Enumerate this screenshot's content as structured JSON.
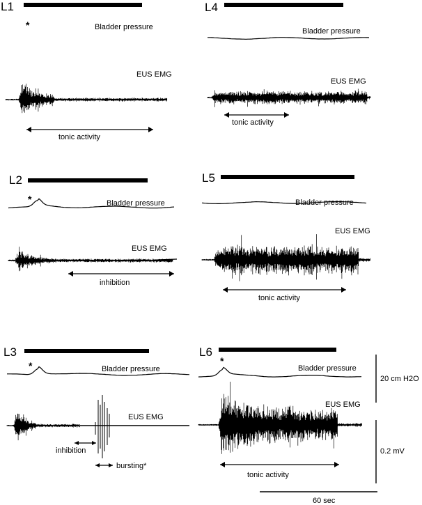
{
  "panels": [
    {
      "id": "L1",
      "label": "L1",
      "pressure_label": "Bladder pressure",
      "emg_label": "EUS EMG",
      "peak_marker": "*",
      "annotations": [
        {
          "text": "tonic activity",
          "kind": "arrow"
        }
      ]
    },
    {
      "id": "L4",
      "label": "L4",
      "pressure_label": "Bladder pressure",
      "emg_label": "EUS EMG",
      "peak_marker": "",
      "annotations": [
        {
          "text": "tonic activity",
          "kind": "arrow"
        }
      ]
    },
    {
      "id": "L2",
      "label": "L2",
      "pressure_label": "Bladder pressure",
      "emg_label": "EUS EMG",
      "peak_marker": "*",
      "annotations": [
        {
          "text": "inhibition",
          "kind": "arrow"
        }
      ]
    },
    {
      "id": "L5",
      "label": "L5",
      "pressure_label": "Bladder pressure",
      "emg_label": "EUS EMG",
      "peak_marker": "",
      "annotations": [
        {
          "text": "tonic activity",
          "kind": "arrow"
        }
      ]
    },
    {
      "id": "L3",
      "label": "L3",
      "pressure_label": "Bladder pressure",
      "emg_label": "EUS EMG",
      "peak_marker": "*",
      "annotations": [
        {
          "text": "inhibition",
          "kind": "arrow"
        },
        {
          "text": "bursting*",
          "kind": "arrow"
        }
      ]
    },
    {
      "id": "L6",
      "label": "L6",
      "pressure_label": "Bladder pressure",
      "emg_label": "EUS EMG",
      "peak_marker": "*",
      "annotations": [
        {
          "text": "tonic activity",
          "kind": "arrow"
        }
      ]
    }
  ],
  "scale_bars": {
    "pressure": "20 cm H2O",
    "emg": "0.2 mV",
    "time": "60 sec"
  },
  "colors": {
    "ink": "#000000",
    "background": "#ffffff"
  }
}
